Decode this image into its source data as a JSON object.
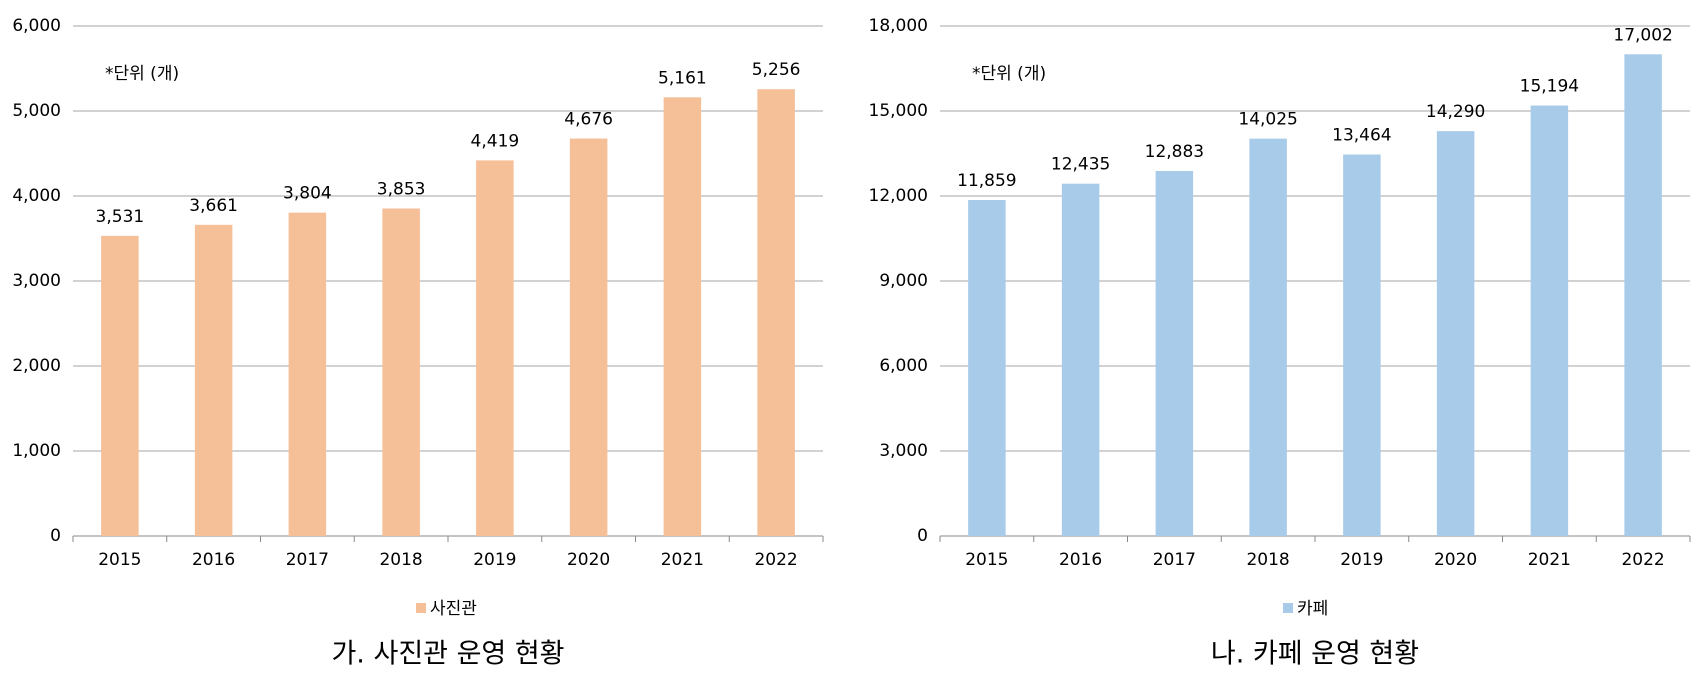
{
  "chart_data": [
    {
      "type": "bar",
      "title": "가. 사진관 운영 현황",
      "annotation": "*단위 (개)",
      "categories": [
        "2015",
        "2016",
        "2017",
        "2018",
        "2019",
        "2020",
        "2021",
        "2022"
      ],
      "series": [
        {
          "name": "사진관",
          "color": "#f5bf98",
          "values": [
            3531,
            3661,
            3804,
            3853,
            4419,
            4676,
            5161,
            5256
          ],
          "value_labels": [
            "3,531",
            "3,661",
            "3,804",
            "3,853",
            "4,419",
            "4,676",
            "5,161",
            "5,256"
          ]
        }
      ],
      "ylim": [
        0,
        6000
      ],
      "yticks": [
        0,
        {
          "value": 1000,
          "label": "1,000"
        },
        {
          "value": 2000,
          "label": "2,000"
        },
        {
          "value": 3000,
          "label": "3,000"
        },
        {
          "value": 4000,
          "label": "4,000"
        },
        {
          "value": 5000,
          "label": "5,000"
        },
        {
          "value": 6000,
          "label": "6,000"
        }
      ],
      "grid": true,
      "legend": "bottom"
    },
    {
      "type": "bar",
      "title": "나. 카페 운영 현황",
      "annotation": "*단위 (개)",
      "categories": [
        "2015",
        "2016",
        "2017",
        "2018",
        "2019",
        "2020",
        "2021",
        "2022"
      ],
      "series": [
        {
          "name": "카페",
          "color": "#a9cbea",
          "values": [
            11859,
            12435,
            12883,
            14025,
            13464,
            14290,
            15194,
            17002
          ],
          "value_labels": [
            "11,859",
            "12,435",
            "12,883",
            "14,025",
            "13,464",
            "14,290",
            "15,194",
            "17,002"
          ]
        }
      ],
      "ylim": [
        0,
        18000
      ],
      "yticks": [
        0,
        {
          "value": 3000,
          "label": "3,000"
        },
        {
          "value": 6000,
          "label": "6,000"
        },
        {
          "value": 9000,
          "label": "9,000"
        },
        {
          "value": 12000,
          "label": "12,000"
        },
        {
          "value": 15000,
          "label": "15,000"
        },
        {
          "value": 18000,
          "label": "18,000"
        }
      ],
      "grid": true,
      "legend": "bottom"
    }
  ]
}
